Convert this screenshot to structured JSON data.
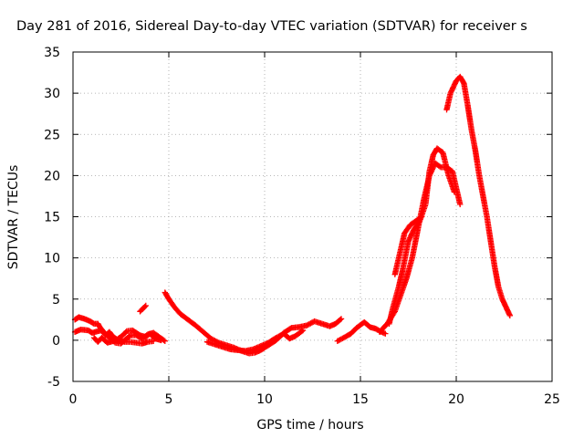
{
  "chart_data": {
    "type": "scatter",
    "title": "Day 281 of 2016, Sidereal Day-to-day VTEC variation (SDTVAR) for receiver s",
    "xlabel": "GPS time / hours",
    "ylabel": "SDTVAR / TECUs",
    "xlim": [
      0,
      25
    ],
    "ylim": [
      -5,
      35
    ],
    "xticks": [
      0,
      5,
      10,
      15,
      20,
      25
    ],
    "yticks": [
      -5,
      0,
      5,
      10,
      15,
      20,
      25,
      30,
      35
    ],
    "grid": true,
    "marker": "plus",
    "color": "#ff0000",
    "series": [
      {
        "segments": [
          [
            [
              0.1,
              2.5
            ],
            [
              0.3,
              2.8
            ],
            [
              0.6,
              2.6
            ],
            [
              0.9,
              2.3
            ],
            [
              1.1,
              2.0
            ],
            [
              1.3,
              2.0
            ],
            [
              1.4,
              1.6
            ],
            [
              1.6,
              1.0
            ],
            [
              1.8,
              0.5
            ],
            [
              2.0,
              0.2
            ],
            [
              2.2,
              -0.3
            ],
            [
              2.5,
              -0.4
            ],
            [
              2.8,
              0.2
            ],
            [
              3.0,
              0.6
            ],
            [
              3.3,
              0.6
            ],
            [
              3.6,
              0.2
            ],
            [
              3.9,
              0.7
            ],
            [
              4.2,
              0.9
            ],
            [
              4.5,
              0.4
            ],
            [
              4.8,
              -0.1
            ]
          ],
          [
            [
              0.1,
              1.0
            ],
            [
              0.4,
              1.3
            ],
            [
              0.8,
              1.2
            ],
            [
              1.0,
              0.9
            ],
            [
              1.3,
              1.1
            ],
            [
              1.5,
              1.2
            ],
            [
              1.7,
              0.6
            ],
            [
              1.9,
              1.0
            ],
            [
              2.1,
              0.4
            ],
            [
              2.3,
              0.1
            ],
            [
              2.6,
              0.6
            ],
            [
              2.8,
              1.1
            ],
            [
              3.1,
              1.2
            ],
            [
              3.3,
              0.9
            ],
            [
              3.5,
              0.6
            ],
            [
              3.8,
              0.4
            ],
            [
              4.0,
              0.8
            ],
            [
              4.3,
              0.2
            ],
            [
              4.6,
              0.0
            ]
          ],
          [
            [
              1.1,
              0.3
            ],
            [
              1.3,
              -0.2
            ],
            [
              1.5,
              0.3
            ],
            [
              1.8,
              -0.3
            ],
            [
              2.1,
              -0.1
            ],
            [
              2.4,
              0.0
            ],
            [
              2.7,
              -0.2
            ],
            [
              3.0,
              -0.2
            ],
            [
              3.3,
              -0.3
            ],
            [
              3.6,
              -0.4
            ],
            [
              3.9,
              -0.2
            ],
            [
              4.2,
              -0.1
            ]
          ],
          [
            [
              3.5,
              3.5
            ],
            [
              3.8,
              4.2
            ]
          ],
          [
            [
              4.8,
              5.8
            ],
            [
              5.0,
              5.0
            ],
            [
              5.3,
              4.0
            ],
            [
              5.6,
              3.2
            ],
            [
              6.0,
              2.5
            ],
            [
              6.4,
              1.8
            ],
            [
              6.8,
              1.0
            ],
            [
              7.2,
              0.2
            ],
            [
              7.6,
              -0.3
            ],
            [
              8.0,
              -0.6
            ],
            [
              8.4,
              -0.9
            ],
            [
              8.8,
              -1.3
            ],
            [
              9.2,
              -1.6
            ],
            [
              9.5,
              -1.5
            ],
            [
              9.8,
              -1.2
            ],
            [
              10.2,
              -0.6
            ],
            [
              10.6,
              0.0
            ],
            [
              11.0,
              0.9
            ],
            [
              11.4,
              1.5
            ],
            [
              11.8,
              1.6
            ],
            [
              12.2,
              1.8
            ],
            [
              12.6,
              2.3
            ],
            [
              13.0,
              2.0
            ],
            [
              13.4,
              1.7
            ],
            [
              13.7,
              2.0
            ],
            [
              14.0,
              2.6
            ]
          ],
          [
            [
              7.0,
              -0.2
            ],
            [
              7.4,
              -0.5
            ],
            [
              7.8,
              -0.8
            ],
            [
              8.2,
              -1.1
            ],
            [
              8.6,
              -1.2
            ],
            [
              9.0,
              -1.3
            ],
            [
              9.4,
              -1.1
            ],
            [
              9.8,
              -0.7
            ],
            [
              10.2,
              -0.3
            ],
            [
              10.6,
              0.3
            ],
            [
              11.0,
              0.8
            ],
            [
              11.3,
              0.2
            ],
            [
              11.6,
              0.5
            ],
            [
              12.0,
              1.2
            ]
          ],
          [
            [
              13.8,
              -0.1
            ],
            [
              14.2,
              0.4
            ],
            [
              14.5,
              0.8
            ],
            [
              14.8,
              1.5
            ],
            [
              15.2,
              2.2
            ],
            [
              15.5,
              1.6
            ],
            [
              15.8,
              1.4
            ],
            [
              16.1,
              1.0
            ],
            [
              16.3,
              0.8
            ]
          ],
          [
            [
              16.0,
              1.0
            ],
            [
              16.4,
              2.0
            ],
            [
              16.8,
              3.5
            ],
            [
              17.1,
              5.5
            ],
            [
              17.4,
              7.5
            ],
            [
              17.7,
              10.0
            ],
            [
              18.0,
              13.5
            ],
            [
              18.3,
              17.0
            ],
            [
              18.6,
              20.0
            ],
            [
              18.9,
              21.5
            ],
            [
              19.2,
              21.0
            ],
            [
              19.5,
              21.0
            ],
            [
              19.8,
              20.5
            ],
            [
              20.0,
              18.5
            ],
            [
              20.2,
              16.5
            ]
          ],
          [
            [
              16.5,
              2.0
            ],
            [
              16.7,
              4.0
            ],
            [
              17.0,
              6.5
            ],
            [
              17.2,
              8.5
            ],
            [
              17.5,
              12.0
            ],
            [
              17.8,
              13.5
            ],
            [
              18.1,
              14.5
            ],
            [
              18.4,
              16.5
            ],
            [
              18.6,
              20.5
            ],
            [
              18.8,
              22.5
            ],
            [
              19.0,
              23.3
            ],
            [
              19.3,
              22.8
            ],
            [
              19.6,
              20.0
            ],
            [
              19.9,
              18.0
            ]
          ],
          [
            [
              16.8,
              8.0
            ],
            [
              17.0,
              10.0
            ],
            [
              17.3,
              13.0
            ],
            [
              17.6,
              14.0
            ],
            [
              17.9,
              14.5
            ],
            [
              18.2,
              15.0
            ]
          ],
          [
            [
              19.5,
              28.0
            ],
            [
              19.7,
              30.0
            ],
            [
              20.0,
              31.5
            ],
            [
              20.2,
              32.0
            ],
            [
              20.4,
              31.2
            ],
            [
              20.6,
              28.5
            ],
            [
              20.8,
              25.5
            ],
            [
              21.0,
              23.0
            ],
            [
              21.2,
              20.0
            ],
            [
              21.4,
              17.5
            ],
            [
              21.6,
              15.0
            ],
            [
              21.8,
              12.0
            ],
            [
              22.0,
              9.0
            ],
            [
              22.2,
              6.5
            ],
            [
              22.4,
              5.0
            ],
            [
              22.6,
              4.0
            ],
            [
              22.8,
              3.0
            ]
          ]
        ]
      }
    ]
  }
}
